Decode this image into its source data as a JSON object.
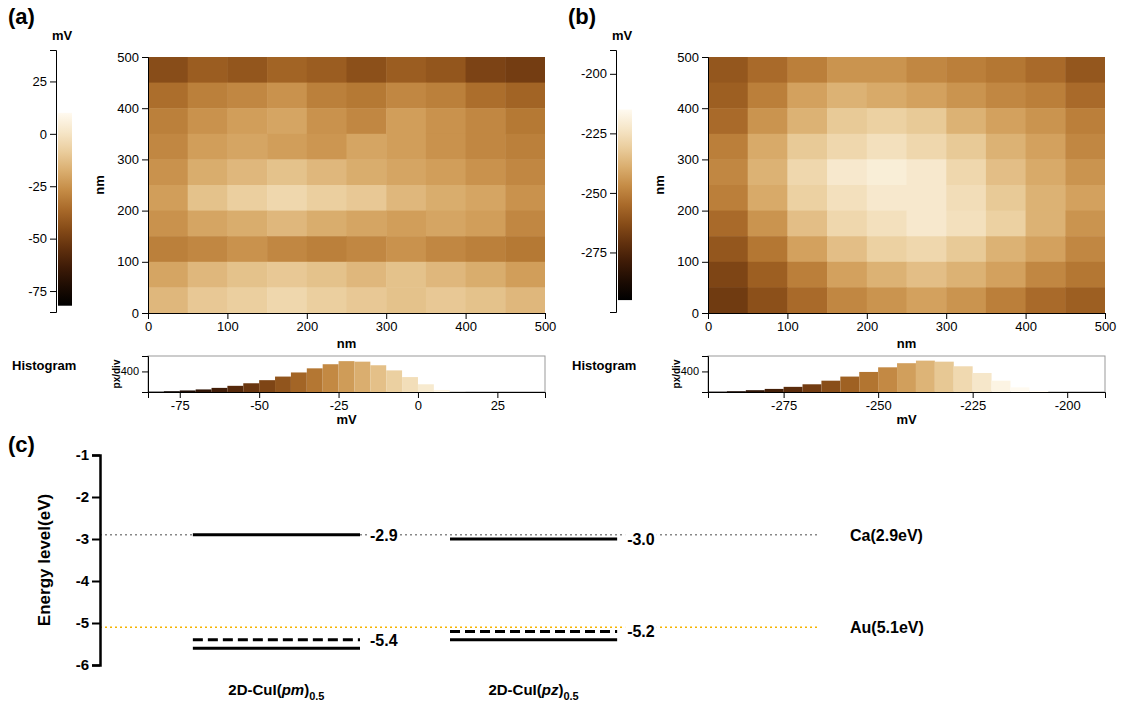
{
  "chart_data": [
    {
      "type": "heatmap",
      "panel_label": "(a)",
      "x_label": "nm",
      "y_label": "nm",
      "xlim": [
        0,
        500
      ],
      "xticks": [
        0,
        100,
        200,
        300,
        400,
        500
      ],
      "ylim": [
        0,
        500
      ],
      "yticks": [
        0,
        100,
        200,
        300,
        400,
        500
      ],
      "x": [
        25,
        75,
        125,
        175,
        225,
        275,
        325,
        375,
        425,
        475
      ],
      "y": [
        475,
        425,
        375,
        325,
        275,
        225,
        175,
        125,
        75,
        25
      ],
      "values": [
        [
          -45,
          -40,
          -42,
          -38,
          -40,
          -44,
          -40,
          -42,
          -48,
          -50
        ],
        [
          -35,
          -30,
          -28,
          -25,
          -30,
          -32,
          -28,
          -30,
          -35,
          -38
        ],
        [
          -30,
          -25,
          -22,
          -20,
          -25,
          -28,
          -22,
          -25,
          -28,
          -32
        ],
        [
          -28,
          -22,
          -20,
          -22,
          -24,
          -20,
          -22,
          -25,
          -28,
          -30
        ],
        [
          -25,
          -18,
          -15,
          -12,
          -15,
          -18,
          -20,
          -22,
          -25,
          -28
        ],
        [
          -22,
          -12,
          -8,
          -5,
          -8,
          -10,
          -15,
          -18,
          -20,
          -25
        ],
        [
          -25,
          -20,
          -18,
          -15,
          -18,
          -20,
          -22,
          -20,
          -22,
          -28
        ],
        [
          -30,
          -28,
          -25,
          -28,
          -30,
          -28,
          -25,
          -28,
          -30,
          -32
        ],
        [
          -20,
          -15,
          -12,
          -10,
          -12,
          -15,
          -12,
          -15,
          -18,
          -22
        ],
        [
          -15,
          -10,
          -8,
          -5,
          -8,
          -10,
          -12,
          -10,
          -12,
          -15
        ]
      ],
      "colorbar": {
        "label": "mV",
        "range": [
          -85,
          40
        ],
        "ticks": [
          25,
          0,
          -25,
          -50,
          -75
        ],
        "color_range": [
          -82,
          10
        ]
      },
      "histogram": {
        "title": "Histogram",
        "x_label": "mV",
        "y_label": "px/div",
        "xlim": [
          -85,
          40
        ],
        "xticks": [
          -75,
          -50,
          -25,
          0,
          25
        ],
        "ylim": [
          0,
          700
        ],
        "yticks": [
          400
        ],
        "bins": [
          -85,
          -80,
          -75,
          -70,
          -65,
          -60,
          -55,
          -50,
          -45,
          -40,
          -35,
          -30,
          -25,
          -20,
          -15,
          -10,
          -5,
          0,
          5,
          10,
          15,
          20,
          25,
          30,
          35,
          40
        ],
        "counts": [
          5,
          15,
          30,
          50,
          80,
          120,
          170,
          230,
          300,
          380,
          460,
          540,
          600,
          590,
          520,
          420,
          290,
          150,
          40,
          5,
          0,
          0,
          0,
          0,
          0
        ]
      }
    },
    {
      "type": "heatmap",
      "panel_label": "(b)",
      "x_label": "nm",
      "y_label": "nm",
      "xlim": [
        0,
        500
      ],
      "xticks": [
        0,
        100,
        200,
        300,
        400,
        500
      ],
      "ylim": [
        0,
        500
      ],
      "yticks": [
        0,
        100,
        200,
        300,
        400,
        500
      ],
      "x": [
        25,
        75,
        125,
        175,
        225,
        275,
        325,
        375,
        425,
        475
      ],
      "y": [
        475,
        425,
        375,
        325,
        275,
        225,
        175,
        125,
        75,
        25
      ],
      "values": [
        [
          -260,
          -255,
          -250,
          -245,
          -245,
          -248,
          -250,
          -252,
          -255,
          -260
        ],
        [
          -258,
          -250,
          -242,
          -238,
          -240,
          -242,
          -245,
          -248,
          -250,
          -255
        ],
        [
          -255,
          -245,
          -238,
          -232,
          -230,
          -232,
          -238,
          -242,
          -245,
          -250
        ],
        [
          -250,
          -240,
          -232,
          -228,
          -225,
          -228,
          -232,
          -238,
          -242,
          -248
        ],
        [
          -248,
          -238,
          -228,
          -222,
          -220,
          -222,
          -228,
          -235,
          -240,
          -245
        ],
        [
          -250,
          -240,
          -230,
          -225,
          -222,
          -222,
          -226,
          -232,
          -238,
          -242
        ],
        [
          -255,
          -245,
          -235,
          -228,
          -225,
          -222,
          -225,
          -230,
          -238,
          -245
        ],
        [
          -260,
          -252,
          -242,
          -235,
          -230,
          -228,
          -232,
          -238,
          -242,
          -248
        ],
        [
          -265,
          -258,
          -250,
          -242,
          -238,
          -235,
          -238,
          -242,
          -248,
          -252
        ],
        [
          -268,
          -262,
          -255,
          -248,
          -245,
          -242,
          -245,
          -250,
          -255,
          -258
        ]
      ],
      "colorbar": {
        "label": "mV",
        "range": [
          -300,
          -190
        ],
        "ticks": [
          -200,
          -225,
          -250,
          -275
        ],
        "color_range": [
          -295,
          -215
        ]
      },
      "histogram": {
        "title": "Histogram",
        "x_label": "mV",
        "y_label": "px/div",
        "xlim": [
          -295,
          -190
        ],
        "xticks": [
          -275,
          -250,
          -225,
          -200
        ],
        "ylim": [
          0,
          700
        ],
        "yticks": [
          400
        ],
        "bins": [
          -295,
          -290,
          -285,
          -280,
          -275,
          -270,
          -265,
          -260,
          -255,
          -250,
          -245,
          -240,
          -235,
          -230,
          -225,
          -220,
          -215,
          -210,
          -205,
          -200,
          -195,
          -190
        ],
        "counts": [
          5,
          15,
          35,
          60,
          100,
          150,
          220,
          300,
          390,
          480,
          560,
          610,
          590,
          500,
          370,
          220,
          90,
          20,
          3,
          0,
          0
        ]
      }
    },
    {
      "type": "energy_level",
      "panel_label": "(c)",
      "y_label": "Energy level(eV)",
      "ylim": [
        -6,
        -1
      ],
      "yticks": [
        -1,
        -2,
        -3,
        -4,
        -5,
        -6
      ],
      "categories": [
        "2D-CuI(pm)0.5",
        "2D-CuI(pz)0.5"
      ],
      "series": [
        {
          "line_style": "solid",
          "values": [
            -2.9,
            -3.0
          ],
          "data_labels": true,
          "value_labels": [
            "-2.9",
            "-3.0"
          ]
        },
        {
          "line_style": "dashed",
          "values": [
            -5.4,
            -5.2
          ],
          "data_labels": true,
          "value_labels": [
            "-5.4",
            "-5.2"
          ]
        },
        {
          "line_style": "solid",
          "values": [
            -5.6,
            -5.4
          ],
          "data_labels": false
        }
      ],
      "reference_lines": [
        {
          "value": -2.9,
          "label": "Ca(2.9eV)",
          "color": "#888888",
          "line_style": "dotted"
        },
        {
          "value": -5.1,
          "label": "Au(5.1eV)",
          "color": "#f5b400",
          "line_style": "dotted"
        }
      ]
    }
  ]
}
